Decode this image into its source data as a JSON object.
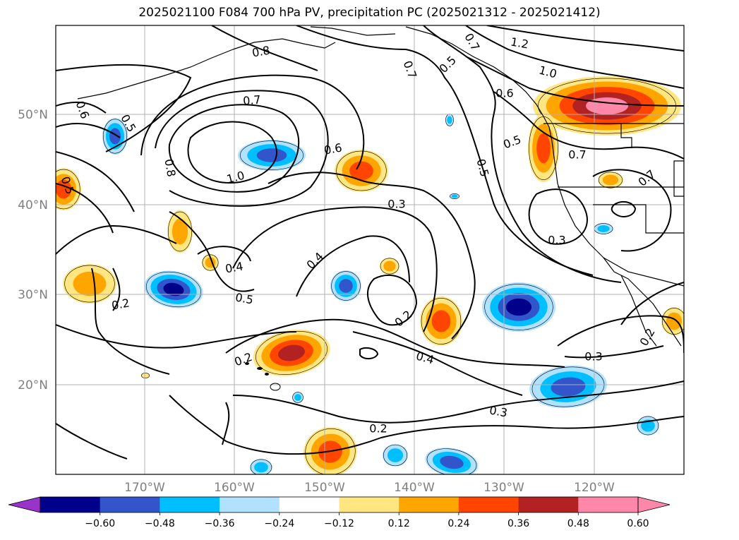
{
  "title": "2025021100 F084 700 hPa PV, precipitation PC (2025021312 - 2025021412)",
  "map": {
    "lat_labels": [
      "50°N",
      "40°N",
      "30°N",
      "20°N"
    ],
    "lon_labels": [
      "170°W",
      "160°W",
      "150°W",
      "140°W",
      "130°W",
      "120°W"
    ],
    "contour_labels": [
      "0.8",
      "0.7",
      "0.5",
      "0.6",
      "0.5",
      "0.7",
      "1.2",
      "1.0",
      "0.6",
      "0.7",
      "0.8",
      "1.0",
      "0.6",
      "0.5",
      "0.5",
      "0.7",
      "0.5",
      "0.3",
      "0.3",
      "0.7",
      "0.4",
      "0.4",
      "0.5",
      "0.2",
      "0.2",
      "0.2",
      "0.4",
      "0.3",
      "0.3",
      "0.2",
      "0.2"
    ]
  },
  "colorbar": {
    "ticks": [
      "−0.60",
      "−0.48",
      "−0.36",
      "−0.24",
      "−0.12",
      "0.12",
      "0.24",
      "0.36",
      "0.48",
      "0.60"
    ],
    "colors": [
      "#9933cc",
      "#00008b",
      "#3355cc",
      "#00bfff",
      "#b0e2ff",
      "#ffffff",
      "#ffe680",
      "#ffa500",
      "#ff4500",
      "#b22222",
      "#ff88aa"
    ]
  }
}
